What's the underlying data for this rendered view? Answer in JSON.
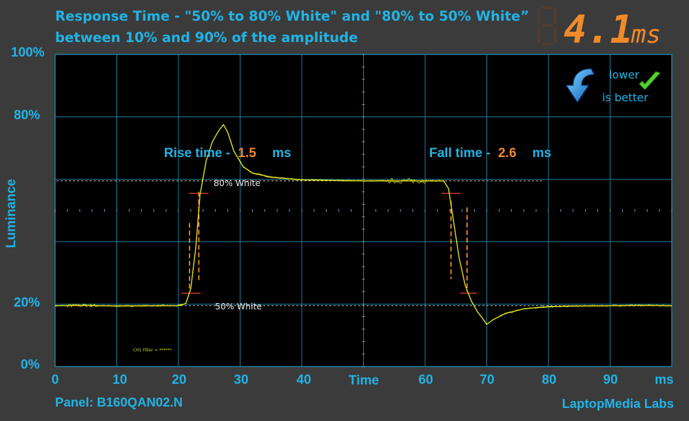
{
  "header": {
    "title_line1": "Response Time - \"50% to 80% White\" and \"80% to 50% White”",
    "title_line2": "between 10% and 90% of the amplitude",
    "display_value": "4.1",
    "display_unit": "ms"
  },
  "footer": {
    "panel": "Panel: B160QAN02.N",
    "brand": "LaptopMedia Labs"
  },
  "badge": {
    "line1": "lower",
    "line2": "is better",
    "icon": "down-arrow-checkmark-icon"
  },
  "annotations": {
    "rise_label": "Rise time -",
    "rise_value": "1.5",
    "rise_unit": "ms",
    "fall_label": "Fall time -",
    "fall_value": "2.6",
    "fall_unit": "ms",
    "ref_high": "80% White",
    "ref_low": "50% White",
    "scope_note": "CH1 Filter = ******"
  },
  "colors": {
    "background": "#3b3b3b",
    "plot_background": "#000000",
    "grid": "#1d7fa3",
    "trace": "#e6e619",
    "accent_blue": "#20b4e6",
    "accent_orange": "#f08a2a",
    "marker_red": "#d83a2a"
  },
  "chart_data": {
    "type": "line",
    "title": "Response Time - \"50% to 80% White\" and \"80% to 50% White” between 10% and 90% of the amplitude",
    "xlabel": "Time",
    "x_unit": "ms",
    "ylabel": "Luminance",
    "xlim": [
      0,
      100
    ],
    "ylim": [
      0,
      100
    ],
    "x_ticks": [
      "0",
      "10",
      "20",
      "30",
      "40",
      "60",
      "70",
      "80",
      "90"
    ],
    "y_ticks": [
      "0%",
      "20%",
      "80%",
      "100%"
    ],
    "grid": true,
    "series": [
      {
        "x": [
          0,
          5,
          10,
          15,
          20,
          21.2,
          22,
          22.8,
          23.5,
          24.5,
          25.5,
          26.5,
          27.3,
          28,
          29,
          30.5,
          32,
          35,
          40,
          50,
          57,
          60,
          63,
          63.8,
          64.5,
          65.5,
          66.5,
          67.5,
          68.5,
          69.3,
          70,
          71,
          73,
          76,
          80,
          85,
          90,
          95,
          100
        ],
        "y": [
          19.5,
          19.6,
          19.4,
          19.5,
          19.5,
          20.2,
          25,
          38,
          55,
          66,
          72,
          75.5,
          77.5,
          75,
          69,
          64,
          62,
          60.7,
          59.8,
          59.5,
          59.5,
          59.5,
          59.5,
          57,
          48,
          35,
          26,
          21,
          17.5,
          15.5,
          13.5,
          15,
          17,
          18.5,
          19.2,
          19.4,
          19.5,
          19.6,
          19.5
        ]
      }
    ],
    "reference_lines": [
      {
        "label": "80% White",
        "y": 59.5
      },
      {
        "label": "50% White",
        "y": 19.5
      }
    ],
    "rise": {
      "start_ms": 21.8,
      "end_ms": 23.3,
      "low_pct": 23.5,
      "high_pct": 55.5
    },
    "fall": {
      "start_ms": 64.2,
      "end_ms": 66.8,
      "high_pct": 55.5,
      "low_pct": 23.5
    }
  }
}
